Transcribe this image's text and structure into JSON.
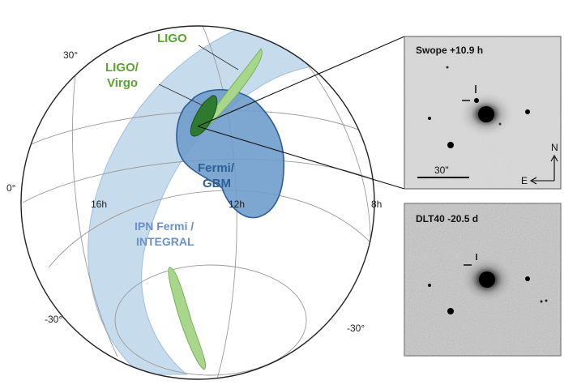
{
  "figure": {
    "ra_labels": [
      "16h",
      "12h",
      "8h"
    ],
    "dec_labels_left": [
      "30°",
      "0°",
      "-30°"
    ],
    "dec_label_right": "-30°",
    "regions": {
      "ligo": "LIGO",
      "ligo_virgo_line1": "LIGO/",
      "ligo_virgo_line2": "Virgo",
      "fermi_gbm_line1": "Fermi/",
      "fermi_gbm_line2": "GBM",
      "ipn_line1": "IPN Fermi /",
      "ipn_line2": "INTEGRAL"
    },
    "colors": {
      "ipn_band": "#bcd6ea",
      "fermi_gbm": "#6f9ccb",
      "ligo_virgo": "#2e7a2e",
      "ligo": "#a8d68a"
    }
  },
  "panels": {
    "top": {
      "title": "Swope +10.9 h",
      "scale": "30\"",
      "compass_n": "N",
      "compass_e": "E"
    },
    "bottom": {
      "title": "DLT40 -20.5 d"
    }
  }
}
